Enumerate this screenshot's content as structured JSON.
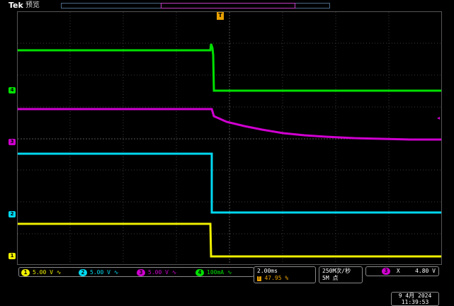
{
  "header": {
    "brand": "Tek",
    "mode": "预览"
  },
  "trigger_marker": "T",
  "channels": [
    {
      "id": "1",
      "color": "#f0f000",
      "scale": "5.00 V",
      "coupling": "∿"
    },
    {
      "id": "2",
      "color": "#00d8f0",
      "scale": "5.00 V",
      "coupling": "∿"
    },
    {
      "id": "3",
      "color": "#d000d0",
      "scale": "5.00 V",
      "coupling": "∿"
    },
    {
      "id": "4",
      "color": "#00e000",
      "scale": "100mA",
      "coupling": "∿"
    }
  ],
  "timebase": {
    "scale": "2.00ms",
    "position": "47.95 %"
  },
  "acquisition": {
    "rate": "250M次/秒",
    "points": "5M 点"
  },
  "trigger": {
    "source": "3",
    "type": "X",
    "level": "4.80 V"
  },
  "datetime": {
    "date": "9 4月 2024",
    "time": "11:39:53"
  }
}
